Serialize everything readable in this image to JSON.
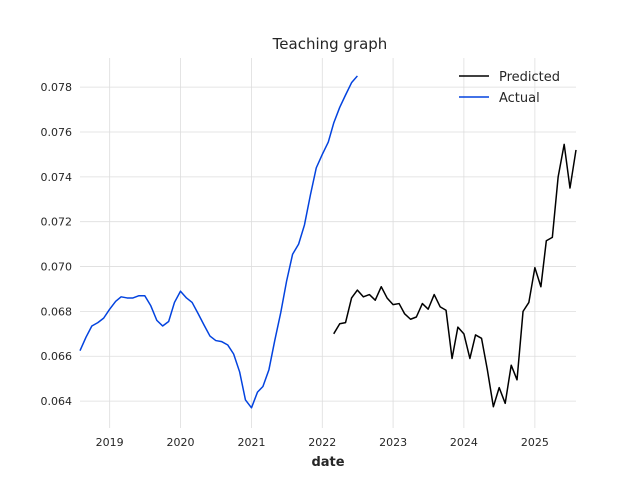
{
  "chart_data": {
    "type": "line",
    "title": "Teaching graph",
    "xlabel": "date",
    "ylabel": "",
    "xlim": [
      "2018-08-01",
      "2025-08-01"
    ],
    "ylim": [
      0.0628,
      0.0793
    ],
    "xticks": [
      "2019",
      "2020",
      "2021",
      "2022",
      "2023",
      "2024",
      "2025"
    ],
    "yticks": [
      "0.064",
      "0.066",
      "0.068",
      "0.070",
      "0.072",
      "0.074",
      "0.076",
      "0.078"
    ],
    "grid": true,
    "legend": "top-right",
    "series": [
      {
        "name": "Predicted",
        "color": "#000000",
        "points": [
          [
            "2022-03-01",
            0.067
          ],
          [
            "2022-04-01",
            0.06745
          ],
          [
            "2022-05-01",
            0.0675
          ],
          [
            "2022-06-01",
            0.0686
          ],
          [
            "2022-07-01",
            0.06895
          ],
          [
            "2022-08-01",
            0.06865
          ],
          [
            "2022-09-01",
            0.06875
          ],
          [
            "2022-10-01",
            0.0685
          ],
          [
            "2022-11-01",
            0.0691
          ],
          [
            "2022-12-01",
            0.0686
          ],
          [
            "2023-01-01",
            0.0683
          ],
          [
            "2023-02-01",
            0.06835
          ],
          [
            "2023-03-01",
            0.0679
          ],
          [
            "2023-04-01",
            0.06765
          ],
          [
            "2023-05-01",
            0.06775
          ],
          [
            "2023-06-01",
            0.06835
          ],
          [
            "2023-07-01",
            0.0681
          ],
          [
            "2023-08-01",
            0.06875
          ],
          [
            "2023-09-01",
            0.0682
          ],
          [
            "2023-10-01",
            0.06805
          ],
          [
            "2023-11-01",
            0.0659
          ],
          [
            "2023-12-01",
            0.0673
          ],
          [
            "2024-01-01",
            0.067
          ],
          [
            "2024-02-01",
            0.0659
          ],
          [
            "2024-03-01",
            0.06695
          ],
          [
            "2024-04-01",
            0.0668
          ],
          [
            "2024-05-01",
            0.0654
          ],
          [
            "2024-06-01",
            0.06375
          ],
          [
            "2024-07-01",
            0.0646
          ],
          [
            "2024-08-01",
            0.0639
          ],
          [
            "2024-09-01",
            0.0656
          ],
          [
            "2024-10-01",
            0.06495
          ],
          [
            "2024-11-01",
            0.068
          ],
          [
            "2024-12-01",
            0.0684
          ],
          [
            "2025-01-01",
            0.06995
          ],
          [
            "2025-02-01",
            0.0691
          ],
          [
            "2025-03-01",
            0.07115
          ],
          [
            "2025-04-01",
            0.0713
          ],
          [
            "2025-05-01",
            0.074
          ],
          [
            "2025-06-01",
            0.07545
          ],
          [
            "2025-07-01",
            0.0735
          ],
          [
            "2025-08-01",
            0.0752
          ]
        ]
      },
      {
        "name": "Actual",
        "color": "#0343df",
        "points": [
          [
            "2018-08-01",
            0.06625
          ],
          [
            "2018-09-01",
            0.06685
          ],
          [
            "2018-10-01",
            0.06735
          ],
          [
            "2018-11-01",
            0.0675
          ],
          [
            "2018-12-01",
            0.0677
          ],
          [
            "2019-01-01",
            0.0681
          ],
          [
            "2019-02-01",
            0.06845
          ],
          [
            "2019-03-01",
            0.06865
          ],
          [
            "2019-04-01",
            0.0686
          ],
          [
            "2019-05-01",
            0.0686
          ],
          [
            "2019-06-01",
            0.0687
          ],
          [
            "2019-07-01",
            0.0687
          ],
          [
            "2019-08-01",
            0.06825
          ],
          [
            "2019-09-01",
            0.0676
          ],
          [
            "2019-10-01",
            0.06735
          ],
          [
            "2019-11-01",
            0.06755
          ],
          [
            "2019-12-01",
            0.0684
          ],
          [
            "2020-01-01",
            0.0689
          ],
          [
            "2020-02-01",
            0.0686
          ],
          [
            "2020-03-01",
            0.0684
          ],
          [
            "2020-04-01",
            0.0679
          ],
          [
            "2020-05-01",
            0.0674
          ],
          [
            "2020-06-01",
            0.0669
          ],
          [
            "2020-07-01",
            0.0667
          ],
          [
            "2020-08-01",
            0.06665
          ],
          [
            "2020-09-01",
            0.0665
          ],
          [
            "2020-10-01",
            0.0661
          ],
          [
            "2020-11-01",
            0.0653
          ],
          [
            "2020-12-01",
            0.06405
          ],
          [
            "2021-01-01",
            0.0637
          ],
          [
            "2021-02-01",
            0.0644
          ],
          [
            "2021-03-01",
            0.06465
          ],
          [
            "2021-04-01",
            0.0654
          ],
          [
            "2021-05-01",
            0.0667
          ],
          [
            "2021-06-01",
            0.06795
          ],
          [
            "2021-07-01",
            0.06935
          ],
          [
            "2021-08-01",
            0.07055
          ],
          [
            "2021-09-01",
            0.071
          ],
          [
            "2021-10-01",
            0.07185
          ],
          [
            "2021-11-01",
            0.0732
          ],
          [
            "2021-12-01",
            0.0744
          ],
          [
            "2022-01-01",
            0.075
          ],
          [
            "2022-02-01",
            0.07555
          ],
          [
            "2022-03-01",
            0.0764
          ],
          [
            "2022-04-01",
            0.0771
          ],
          [
            "2022-05-01",
            0.07765
          ],
          [
            "2022-06-01",
            0.0782
          ],
          [
            "2022-07-01",
            0.0785
          ]
        ]
      }
    ]
  }
}
